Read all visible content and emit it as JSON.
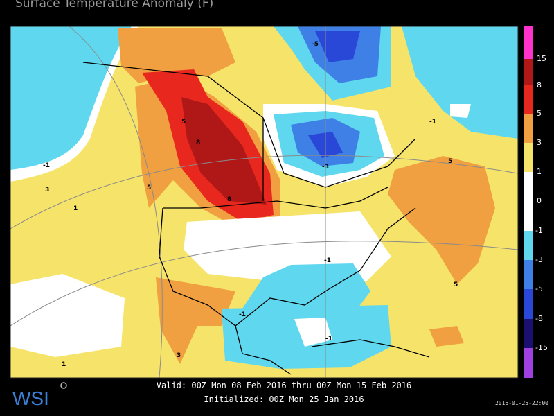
{
  "header": {
    "title": "Surface Temperature Anomaly (F)"
  },
  "map": {
    "contour_labels": [
      "-1",
      "3",
      "1",
      "5",
      "8",
      "8",
      "5",
      "-5",
      "-3",
      "-1",
      "5",
      "5",
      "-1",
      "-1",
      "3",
      "1",
      "-1"
    ]
  },
  "legend": {
    "labels": [
      "15",
      "8",
      "5",
      "3",
      "1",
      "0",
      "-1",
      "-3",
      "-5",
      "-8",
      "-15"
    ]
  },
  "footer": {
    "logo": "WSI",
    "valid": "Valid: 00Z Mon 08 Feb 2016 thru 00Z Mon 15 Feb 2016",
    "initialized": "Initialized: 00Z Mon 25 Jan 2016",
    "timestamp": "2016-01-25-22:00"
  }
}
